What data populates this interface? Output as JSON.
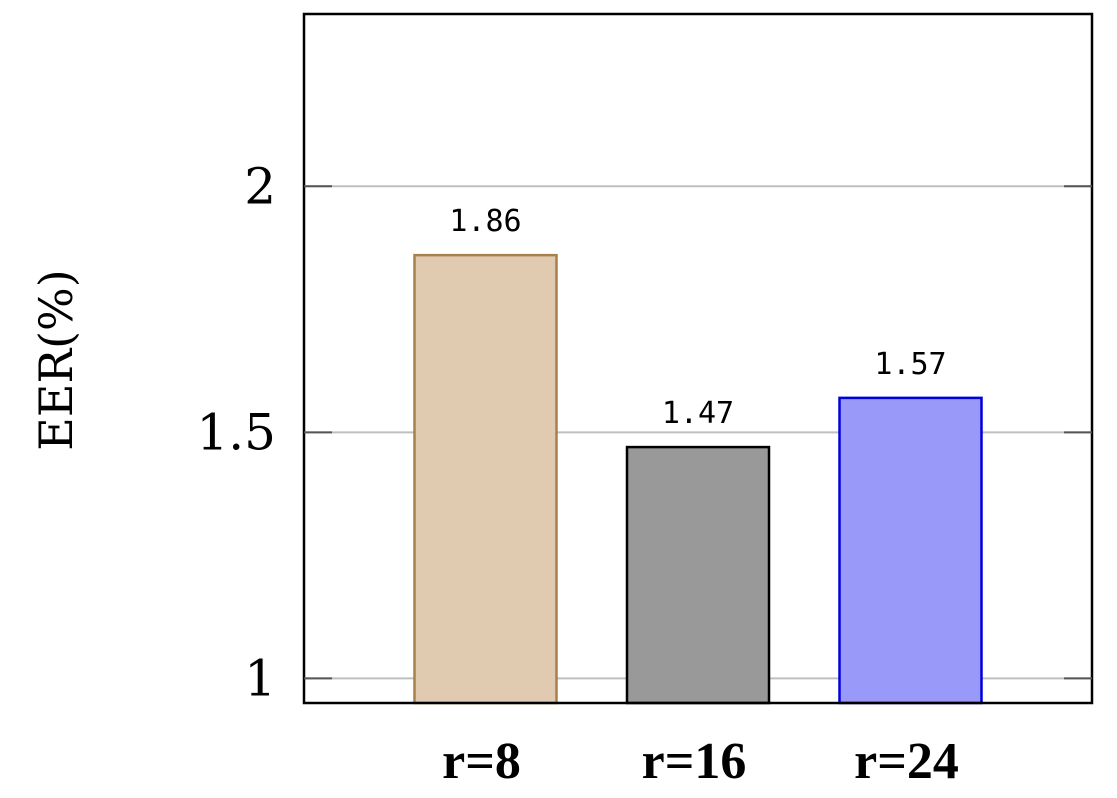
{
  "chart_data": {
    "type": "bar",
    "title": "",
    "xlabel": "",
    "ylabel": "EER(%)",
    "categories": [
      "r=8",
      "r=16",
      "r=24"
    ],
    "values": [
      1.86,
      1.47,
      1.57
    ],
    "data_labels": [
      "1.86",
      "1.47",
      "1.57"
    ],
    "ylim": [
      0.95,
      2.35
    ],
    "yticks": [
      1,
      1.5,
      2
    ],
    "ytick_labels": [
      "1",
      "1.5",
      "2"
    ],
    "grid": true,
    "legend": "none",
    "bar_fills": [
      "#e0cbb0",
      "#999999",
      "#9999fa"
    ],
    "bar_strokes": [
      "#a8804a",
      "#000000",
      "#0000dd"
    ]
  }
}
